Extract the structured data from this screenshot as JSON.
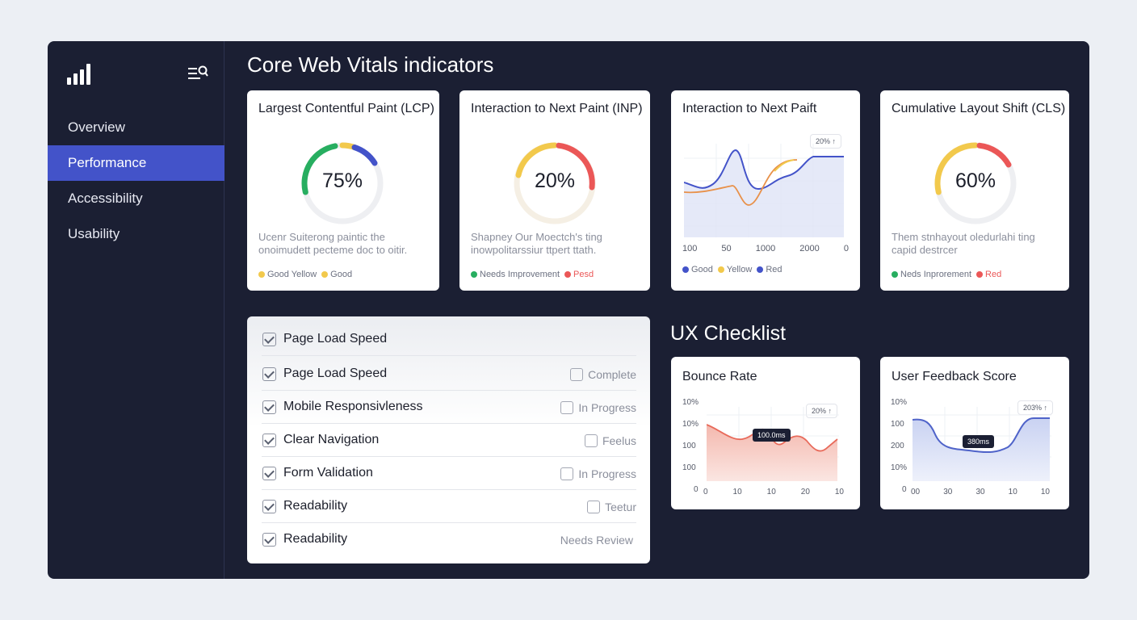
{
  "sidebar": {
    "items": [
      {
        "label": "Overview"
      },
      {
        "label": "Performance"
      },
      {
        "label": "Accessibility"
      },
      {
        "label": "Usability"
      }
    ]
  },
  "page_title": "Core Web Vitals indicators",
  "vitals": [
    {
      "title": "Largest Contentful Paint (LCP)",
      "value": "75%",
      "fraction": 0.75,
      "desc": "Ucenr Suiterong paintic the onoimudett pecteme doc to oitir.",
      "legend": [
        {
          "label": "Good Yellow",
          "color": "#f2c94c"
        },
        {
          "label": "Good",
          "color": "#f2c94c"
        }
      ]
    },
    {
      "title": "Interaction to Next Paint (INP)",
      "value": "20%",
      "fraction": 0.2,
      "desc": "Shapney Our Moectch's ting inowpolitarssiur ttpert ttath.",
      "legend": [
        {
          "label": "Needs Improvement",
          "color": "#27ae60"
        },
        {
          "label": "Pesd",
          "color": "#eb5757"
        }
      ]
    },
    {
      "title": "Interaction to Next Paift",
      "badge": "20% ↑",
      "x_ticks": [
        "100",
        "50",
        "1000",
        "2000",
        "0"
      ],
      "legend": [
        {
          "label": "Good",
          "color": "#4353c9"
        },
        {
          "label": "Yellow",
          "color": "#f2c94c"
        },
        {
          "label": "Red",
          "color": "#4353c9"
        }
      ]
    },
    {
      "title": "Cumulative Layout Shift (CLS)",
      "value": "60%",
      "fraction": 0.6,
      "desc": "Them stnhayout oledurlahi ting capid destrcer",
      "legend": [
        {
          "label": "Neds Inprorement",
          "color": "#27ae60"
        },
        {
          "label": "Red",
          "color": "#eb5757"
        }
      ]
    }
  ],
  "checklist": {
    "header": "Page Load Speed",
    "rows": [
      {
        "label": "Page Load Speed",
        "status": "Complete",
        "has_box": true
      },
      {
        "label": "Mobile Responsivleness",
        "status": "In Progress",
        "has_box": true
      },
      {
        "label": "Clear Navigation",
        "status": "Feelus",
        "has_box": true
      },
      {
        "label": "Form Validation",
        "status": "In Progress",
        "has_box": true
      },
      {
        "label": "Readability",
        "status": "Teetur",
        "has_box": true
      },
      {
        "label": "Readability",
        "status": "Needs Review",
        "has_box": false
      }
    ]
  },
  "ux_title": "UX Checklist",
  "bounce": {
    "title": "Bounce Rate",
    "badge": "20% ↑",
    "tooltip": "100.0ms",
    "y_ticks": [
      "10%",
      "10%",
      "100",
      "100",
      "0"
    ],
    "x_ticks": [
      "0",
      "10",
      "10",
      "20",
      "10"
    ]
  },
  "feedback": {
    "title": "User Feedback Score",
    "badge": "203% ↑",
    "tooltip": "380ms",
    "y_ticks": [
      "10%",
      "100",
      "200",
      "10%",
      "0"
    ],
    "x_ticks": [
      "00",
      "30",
      "30",
      "10",
      "10"
    ]
  },
  "colors": {
    "app_bg": "#1b1f33",
    "accent": "#4353c9",
    "green": "#27ae60",
    "yellow": "#f2c94c",
    "red": "#eb5757",
    "blue": "#4353c9"
  }
}
